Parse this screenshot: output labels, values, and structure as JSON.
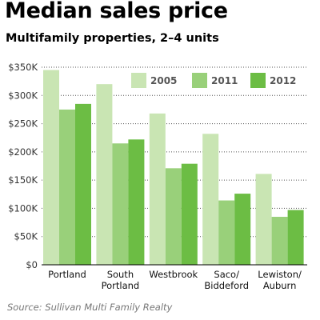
{
  "title": "Median sales price",
  "subtitle": "Multifamily properties, 2–4 units",
  "source": "Source: Sullivan Multi Family Realty",
  "chart_data": {
    "type": "bar",
    "categories": [
      [
        "Portland"
      ],
      [
        "South",
        "Portland"
      ],
      [
        "Westbrook"
      ],
      [
        "Saco/",
        "Biddeford"
      ],
      [
        "Lewiston/",
        "Auburn"
      ]
    ],
    "series": [
      {
        "name": "2005",
        "color": "#c9e5b3",
        "values": [
          345000,
          320000,
          268000,
          232000,
          161000
        ]
      },
      {
        "name": "2011",
        "color": "#99d07a",
        "values": [
          275000,
          215000,
          171000,
          114000,
          85000
        ]
      },
      {
        "name": "2012",
        "color": "#6cbd44",
        "values": [
          285000,
          222000,
          179000,
          126000,
          97000
        ]
      }
    ],
    "ylim": [
      0,
      350000
    ],
    "yticks": [
      0,
      50000,
      100000,
      150000,
      200000,
      250000,
      300000,
      350000
    ],
    "ytick_labels": [
      "$0",
      "$50K",
      "$100K",
      "$150K",
      "$200K",
      "$250K",
      "$300K",
      "$350K"
    ],
    "xlabel": "",
    "ylabel": "",
    "grid": "horizontal dotted",
    "legend": "top-right"
  }
}
